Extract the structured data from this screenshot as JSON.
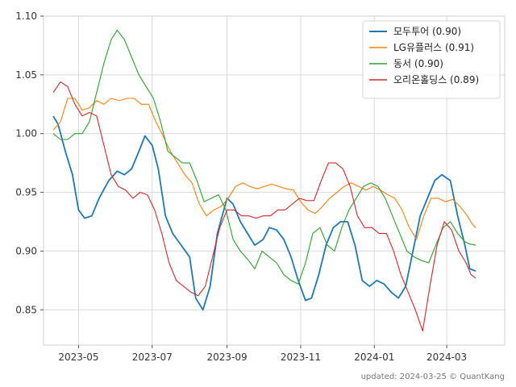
{
  "chart_data": {
    "type": "line",
    "title": "",
    "xlabel": "",
    "ylabel": "",
    "ylim": [
      0.82,
      1.1
    ],
    "xlim": [
      "2023-04-02",
      "2024-04-18"
    ],
    "grid": true,
    "legend_position": "top-right",
    "y_ticks": [
      "0.85",
      "0.90",
      "0.95",
      "1.00",
      "1.05",
      "1.10"
    ],
    "x_ticks": [
      {
        "date": "2023-05-01",
        "label": "2023-05"
      },
      {
        "date": "2023-07-01",
        "label": "2023-07"
      },
      {
        "date": "2023-09-01",
        "label": "2023-09"
      },
      {
        "date": "2023-11-01",
        "label": "2023-11"
      },
      {
        "date": "2024-01-01",
        "label": "2024-01"
      },
      {
        "date": "2024-03-01",
        "label": "2024-03"
      }
    ],
    "series": [
      {
        "name": "모두투어 (0.90)",
        "color": "#1f77b4",
        "points": [
          [
            "2023-04-10",
            1.015
          ],
          [
            "2023-04-14",
            1.008
          ],
          [
            "2023-04-20",
            0.985
          ],
          [
            "2023-04-26",
            0.965
          ],
          [
            "2023-05-01",
            0.935
          ],
          [
            "2023-05-06",
            0.928
          ],
          [
            "2023-05-12",
            0.93
          ],
          [
            "2023-05-18",
            0.945
          ],
          [
            "2023-05-26",
            0.96
          ],
          [
            "2023-06-02",
            0.968
          ],
          [
            "2023-06-08",
            0.965
          ],
          [
            "2023-06-14",
            0.97
          ],
          [
            "2023-06-20",
            0.985
          ],
          [
            "2023-06-25",
            0.998
          ],
          [
            "2023-07-01",
            0.99
          ],
          [
            "2023-07-06",
            0.97
          ],
          [
            "2023-07-12",
            0.93
          ],
          [
            "2023-07-18",
            0.915
          ],
          [
            "2023-07-25",
            0.905
          ],
          [
            "2023-08-01",
            0.895
          ],
          [
            "2023-08-06",
            0.86
          ],
          [
            "2023-08-12",
            0.85
          ],
          [
            "2023-08-18",
            0.87
          ],
          [
            "2023-08-24",
            0.915
          ],
          [
            "2023-09-01",
            0.945
          ],
          [
            "2023-09-06",
            0.94
          ],
          [
            "2023-09-12",
            0.925
          ],
          [
            "2023-09-18",
            0.915
          ],
          [
            "2023-09-24",
            0.905
          ],
          [
            "2023-10-01",
            0.91
          ],
          [
            "2023-10-06",
            0.92
          ],
          [
            "2023-10-12",
            0.918
          ],
          [
            "2023-10-18",
            0.91
          ],
          [
            "2023-10-24",
            0.895
          ],
          [
            "2023-10-30",
            0.875
          ],
          [
            "2023-11-05",
            0.858
          ],
          [
            "2023-11-10",
            0.86
          ],
          [
            "2023-11-16",
            0.88
          ],
          [
            "2023-11-22",
            0.905
          ],
          [
            "2023-11-28",
            0.92
          ],
          [
            "2023-12-04",
            0.925
          ],
          [
            "2023-12-10",
            0.925
          ],
          [
            "2023-12-16",
            0.905
          ],
          [
            "2023-12-22",
            0.875
          ],
          [
            "2023-12-28",
            0.87
          ],
          [
            "2024-01-03",
            0.875
          ],
          [
            "2024-01-09",
            0.872
          ],
          [
            "2024-01-15",
            0.865
          ],
          [
            "2024-01-21",
            0.86
          ],
          [
            "2024-01-27",
            0.87
          ],
          [
            "2024-02-02",
            0.9
          ],
          [
            "2024-02-08",
            0.93
          ],
          [
            "2024-02-14",
            0.945
          ],
          [
            "2024-02-20",
            0.96
          ],
          [
            "2024-02-26",
            0.965
          ],
          [
            "2024-03-04",
            0.96
          ],
          [
            "2024-03-10",
            0.93
          ],
          [
            "2024-03-16",
            0.905
          ],
          [
            "2024-03-20",
            0.885
          ],
          [
            "2024-03-25",
            0.883
          ]
        ]
      },
      {
        "name": "LG유플러스 (0.91)",
        "color": "#ff7f0e",
        "points": [
          [
            "2023-04-10",
            1.003
          ],
          [
            "2023-04-16",
            1.01
          ],
          [
            "2023-04-22",
            1.03
          ],
          [
            "2023-04-28",
            1.03
          ],
          [
            "2023-05-04",
            1.02
          ],
          [
            "2023-05-10",
            1.022
          ],
          [
            "2023-05-16",
            1.028
          ],
          [
            "2023-05-22",
            1.025
          ],
          [
            "2023-05-28",
            1.03
          ],
          [
            "2023-06-04",
            1.028
          ],
          [
            "2023-06-10",
            1.03
          ],
          [
            "2023-06-16",
            1.03
          ],
          [
            "2023-06-22",
            1.025
          ],
          [
            "2023-06-28",
            1.025
          ],
          [
            "2023-07-04",
            1.01
          ],
          [
            "2023-07-10",
            0.998
          ],
          [
            "2023-07-16",
            0.985
          ],
          [
            "2023-07-22",
            0.975
          ],
          [
            "2023-07-28",
            0.965
          ],
          [
            "2023-08-03",
            0.958
          ],
          [
            "2023-08-09",
            0.94
          ],
          [
            "2023-08-15",
            0.93
          ],
          [
            "2023-08-21",
            0.935
          ],
          [
            "2023-08-27",
            0.938
          ],
          [
            "2023-09-02",
            0.945
          ],
          [
            "2023-09-08",
            0.955
          ],
          [
            "2023-09-14",
            0.958
          ],
          [
            "2023-09-20",
            0.955
          ],
          [
            "2023-09-26",
            0.953
          ],
          [
            "2023-10-02",
            0.955
          ],
          [
            "2023-10-08",
            0.957
          ],
          [
            "2023-10-14",
            0.955
          ],
          [
            "2023-10-20",
            0.953
          ],
          [
            "2023-10-26",
            0.952
          ],
          [
            "2023-11-01",
            0.942
          ],
          [
            "2023-11-07",
            0.935
          ],
          [
            "2023-11-13",
            0.932
          ],
          [
            "2023-11-19",
            0.938
          ],
          [
            "2023-11-25",
            0.945
          ],
          [
            "2023-12-01",
            0.95
          ],
          [
            "2023-12-07",
            0.955
          ],
          [
            "2023-12-13",
            0.958
          ],
          [
            "2023-12-19",
            0.955
          ],
          [
            "2023-12-25",
            0.952
          ],
          [
            "2023-12-31",
            0.955
          ],
          [
            "2024-01-06",
            0.952
          ],
          [
            "2024-01-12",
            0.948
          ],
          [
            "2024-01-18",
            0.945
          ],
          [
            "2024-01-24",
            0.935
          ],
          [
            "2024-01-30",
            0.92
          ],
          [
            "2024-02-05",
            0.91
          ],
          [
            "2024-02-11",
            0.93
          ],
          [
            "2024-02-17",
            0.945
          ],
          [
            "2024-02-23",
            0.945
          ],
          [
            "2024-02-29",
            0.942
          ],
          [
            "2024-03-06",
            0.944
          ],
          [
            "2024-03-12",
            0.938
          ],
          [
            "2024-03-18",
            0.93
          ],
          [
            "2024-03-22",
            0.923
          ],
          [
            "2024-03-25",
            0.92
          ]
        ]
      },
      {
        "name": "동서 (0.90)",
        "color": "#2ca02c",
        "points": [
          [
            "2023-04-10",
            1.0
          ],
          [
            "2023-04-16",
            0.995
          ],
          [
            "2023-04-22",
            0.995
          ],
          [
            "2023-04-28",
            1.0
          ],
          [
            "2023-05-04",
            1.0
          ],
          [
            "2023-05-10",
            1.01
          ],
          [
            "2023-05-16",
            1.035
          ],
          [
            "2023-05-22",
            1.06
          ],
          [
            "2023-05-28",
            1.08
          ],
          [
            "2023-06-02",
            1.088
          ],
          [
            "2023-06-08",
            1.08
          ],
          [
            "2023-06-14",
            1.065
          ],
          [
            "2023-06-20",
            1.05
          ],
          [
            "2023-06-26",
            1.04
          ],
          [
            "2023-07-02",
            1.03
          ],
          [
            "2023-07-08",
            1.01
          ],
          [
            "2023-07-14",
            0.985
          ],
          [
            "2023-07-20",
            0.98
          ],
          [
            "2023-07-26",
            0.975
          ],
          [
            "2023-08-01",
            0.975
          ],
          [
            "2023-08-07",
            0.96
          ],
          [
            "2023-08-13",
            0.942
          ],
          [
            "2023-08-19",
            0.945
          ],
          [
            "2023-08-25",
            0.948
          ],
          [
            "2023-08-31",
            0.935
          ],
          [
            "2023-09-06",
            0.91
          ],
          [
            "2023-09-12",
            0.9
          ],
          [
            "2023-09-18",
            0.893
          ],
          [
            "2023-09-24",
            0.885
          ],
          [
            "2023-09-30",
            0.9
          ],
          [
            "2023-10-06",
            0.895
          ],
          [
            "2023-10-12",
            0.89
          ],
          [
            "2023-10-18",
            0.88
          ],
          [
            "2023-10-24",
            0.875
          ],
          [
            "2023-10-30",
            0.872
          ],
          [
            "2023-11-05",
            0.89
          ],
          [
            "2023-11-11",
            0.915
          ],
          [
            "2023-11-17",
            0.92
          ],
          [
            "2023-11-23",
            0.905
          ],
          [
            "2023-11-29",
            0.9
          ],
          [
            "2023-12-05",
            0.92
          ],
          [
            "2023-12-11",
            0.935
          ],
          [
            "2023-12-17",
            0.945
          ],
          [
            "2023-12-23",
            0.955
          ],
          [
            "2023-12-29",
            0.958
          ],
          [
            "2024-01-04",
            0.955
          ],
          [
            "2024-01-10",
            0.945
          ],
          [
            "2024-01-16",
            0.93
          ],
          [
            "2024-01-22",
            0.915
          ],
          [
            "2024-01-28",
            0.9
          ],
          [
            "2024-02-03",
            0.895
          ],
          [
            "2024-02-09",
            0.892
          ],
          [
            "2024-02-15",
            0.89
          ],
          [
            "2024-02-21",
            0.905
          ],
          [
            "2024-02-27",
            0.92
          ],
          [
            "2024-03-04",
            0.925
          ],
          [
            "2024-03-10",
            0.915
          ],
          [
            "2024-03-16",
            0.908
          ],
          [
            "2024-03-20",
            0.906
          ],
          [
            "2024-03-25",
            0.905
          ]
        ]
      },
      {
        "name": "오리온홀딩스 (0.89)",
        "color": "#d62728",
        "points": [
          [
            "2023-04-10",
            1.035
          ],
          [
            "2023-04-16",
            1.044
          ],
          [
            "2023-04-22",
            1.04
          ],
          [
            "2023-04-28",
            1.025
          ],
          [
            "2023-05-04",
            1.015
          ],
          [
            "2023-05-10",
            1.018
          ],
          [
            "2023-05-16",
            1.015
          ],
          [
            "2023-05-22",
            0.99
          ],
          [
            "2023-05-28",
            0.965
          ],
          [
            "2023-06-03",
            0.955
          ],
          [
            "2023-06-09",
            0.952
          ],
          [
            "2023-06-15",
            0.945
          ],
          [
            "2023-06-21",
            0.95
          ],
          [
            "2023-06-27",
            0.948
          ],
          [
            "2023-07-03",
            0.935
          ],
          [
            "2023-07-09",
            0.915
          ],
          [
            "2023-07-15",
            0.89
          ],
          [
            "2023-07-21",
            0.875
          ],
          [
            "2023-07-27",
            0.87
          ],
          [
            "2023-08-02",
            0.865
          ],
          [
            "2023-08-08",
            0.862
          ],
          [
            "2023-08-14",
            0.87
          ],
          [
            "2023-08-20",
            0.895
          ],
          [
            "2023-08-26",
            0.92
          ],
          [
            "2023-09-01",
            0.935
          ],
          [
            "2023-09-07",
            0.935
          ],
          [
            "2023-09-13",
            0.93
          ],
          [
            "2023-09-19",
            0.93
          ],
          [
            "2023-09-25",
            0.928
          ],
          [
            "2023-10-01",
            0.93
          ],
          [
            "2023-10-07",
            0.93
          ],
          [
            "2023-10-13",
            0.935
          ],
          [
            "2023-10-19",
            0.935
          ],
          [
            "2023-10-25",
            0.94
          ],
          [
            "2023-10-31",
            0.945
          ],
          [
            "2023-11-06",
            0.943
          ],
          [
            "2023-11-12",
            0.943
          ],
          [
            "2023-11-18",
            0.96
          ],
          [
            "2023-11-24",
            0.975
          ],
          [
            "2023-11-30",
            0.975
          ],
          [
            "2023-12-06",
            0.97
          ],
          [
            "2023-12-12",
            0.955
          ],
          [
            "2023-12-18",
            0.93
          ],
          [
            "2023-12-24",
            0.92
          ],
          [
            "2023-12-30",
            0.92
          ],
          [
            "2024-01-05",
            0.915
          ],
          [
            "2024-01-11",
            0.915
          ],
          [
            "2024-01-17",
            0.9
          ],
          [
            "2024-01-23",
            0.88
          ],
          [
            "2024-01-29",
            0.865
          ],
          [
            "2024-02-04",
            0.85
          ],
          [
            "2024-02-10",
            0.832
          ],
          [
            "2024-02-16",
            0.87
          ],
          [
            "2024-02-22",
            0.905
          ],
          [
            "2024-02-28",
            0.925
          ],
          [
            "2024-03-05",
            0.918
          ],
          [
            "2024-03-11",
            0.9
          ],
          [
            "2024-03-17",
            0.89
          ],
          [
            "2024-03-21",
            0.88
          ],
          [
            "2024-03-25",
            0.877
          ]
        ]
      }
    ]
  },
  "footer": {
    "text": "updated: 2024-03-25 © QuantKang"
  }
}
